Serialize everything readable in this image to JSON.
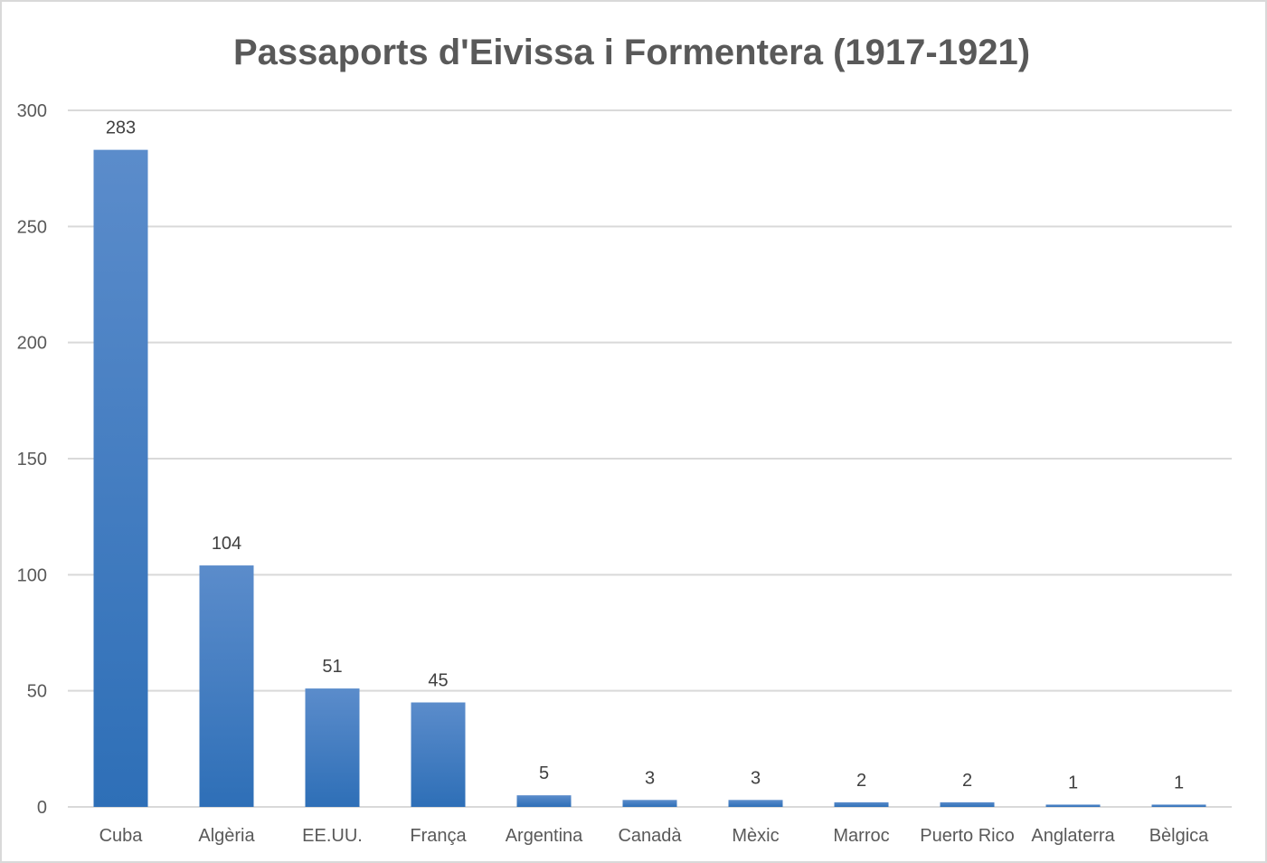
{
  "chart_data": {
    "type": "bar",
    "title": "Passaports d'Eivissa i Formentera (1917-1921)",
    "xlabel": "",
    "ylabel": "",
    "categories": [
      "Cuba",
      "Algèria",
      "EE.UU.",
      "França",
      "Argentina",
      "Canadà",
      "Mèxic",
      "Marroc",
      "Puerto Rico",
      "Anglaterra",
      "Bèlgica"
    ],
    "values": [
      283,
      104,
      51,
      45,
      5,
      3,
      3,
      2,
      2,
      1,
      1
    ],
    "data_labels": [
      "283",
      "104",
      "51",
      "45",
      "5",
      "3",
      "3",
      "2",
      "2",
      "1",
      "1"
    ],
    "ylim": [
      0,
      300
    ],
    "yticks": [
      0,
      50,
      100,
      150,
      200,
      250,
      300
    ],
    "ytick_labels": [
      "0",
      "50",
      "100",
      "150",
      "200",
      "250",
      "300"
    ],
    "grid": true,
    "legend": "none",
    "colors": {
      "bar_top": "#5b8ccb",
      "bar_bottom": "#2e6fb7",
      "grid": "#d9d9d9",
      "text": "#595959"
    }
  }
}
